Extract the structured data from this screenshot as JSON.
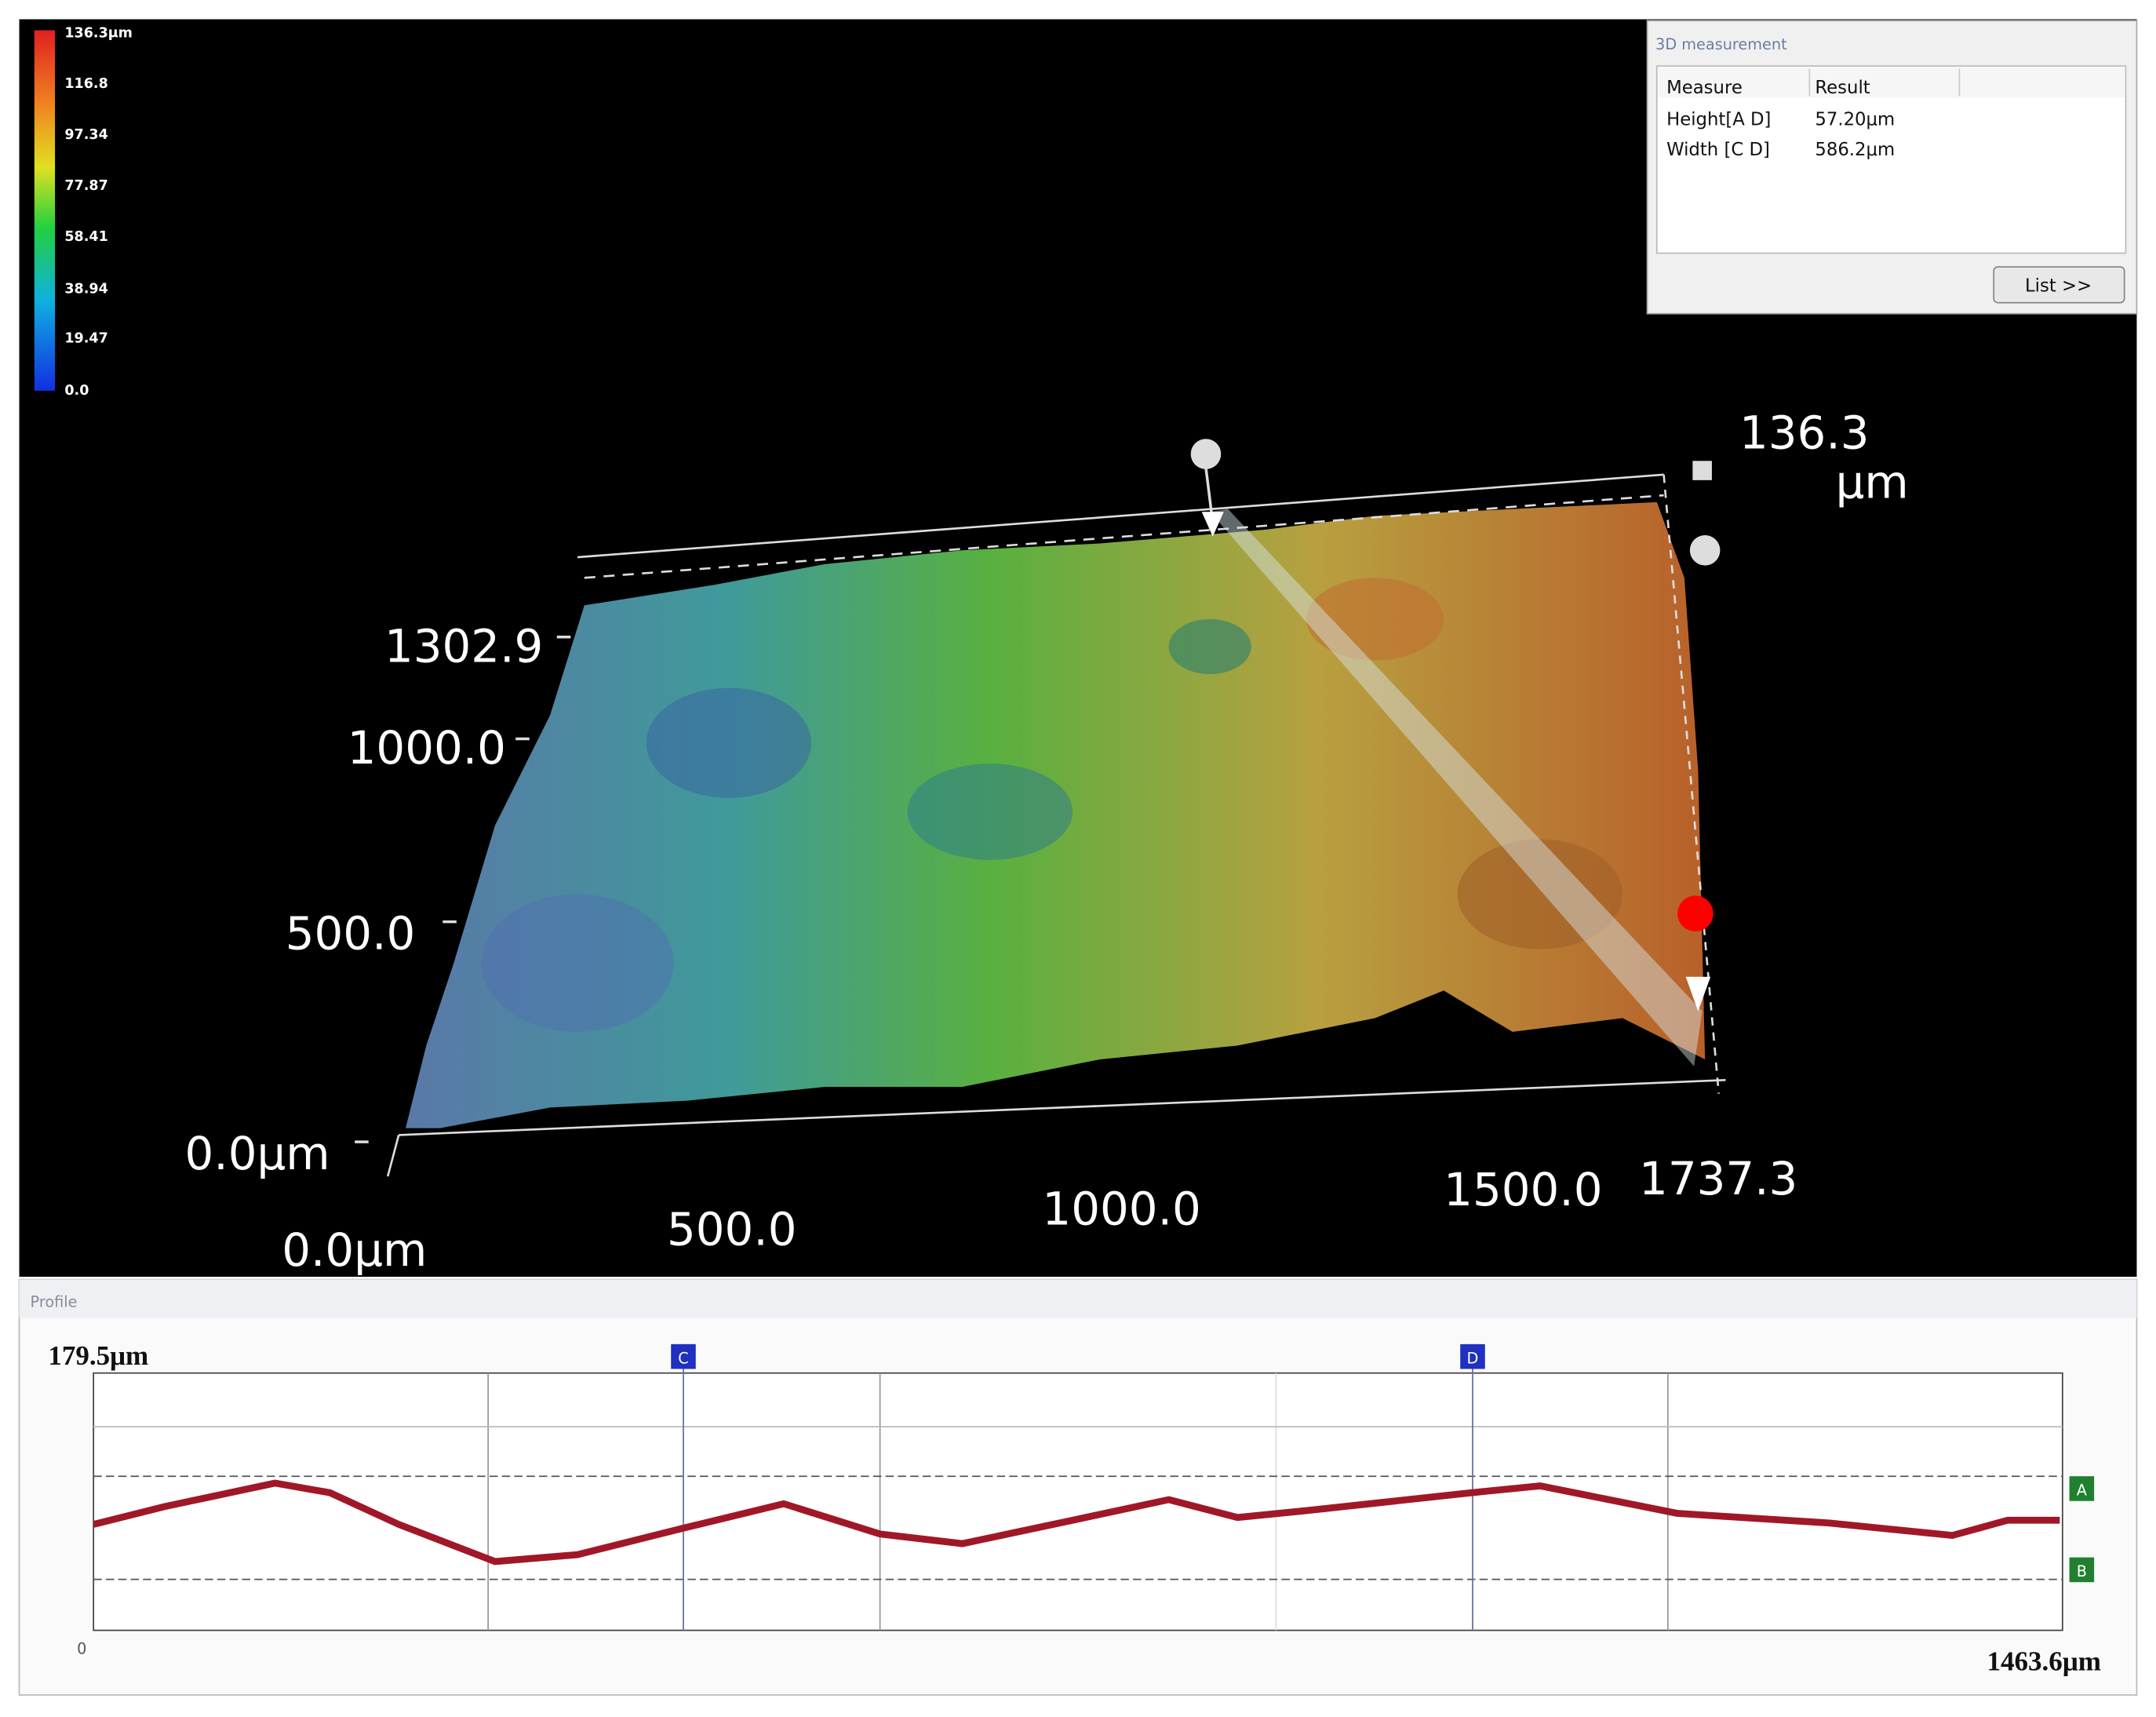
{
  "colorbar": {
    "labels": [
      "136.3μm",
      "116.8",
      "97.34",
      "77.87",
      "58.41",
      "38.94",
      "19.47",
      "0.0"
    ]
  },
  "measurement_panel": {
    "title": "3D measurement",
    "columns": [
      "Measure",
      "Result"
    ],
    "rows": [
      [
        "Height[A D]",
        "57.20μm"
      ],
      [
        "Width [C D]",
        "586.2μm"
      ]
    ],
    "button": "List >>"
  },
  "view3d": {
    "z_max": "136.3",
    "z_unit": "μm",
    "y_labels": [
      "1302.9",
      "1000.0",
      "500.0",
      "0.0μm"
    ],
    "x_labels": [
      "0.0μm",
      "500.0",
      "1000.0",
      "1500.0",
      "1737.3"
    ]
  },
  "profile": {
    "title": "Profile",
    "y_max": "179.5μm",
    "origin": "0",
    "x_max": "1463.6μm",
    "markers": [
      "C",
      "D",
      "A",
      "B"
    ]
  }
}
